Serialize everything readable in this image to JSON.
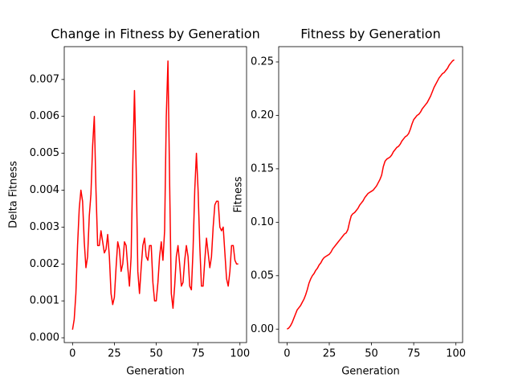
{
  "chart_data": [
    {
      "type": "line",
      "title": "Change in Fitness by Generation",
      "xlabel": "Generation",
      "ylabel": "Delta Fitness",
      "x": [
        0,
        1,
        2,
        3,
        4,
        5,
        6,
        7,
        8,
        9,
        10,
        11,
        12,
        13,
        14,
        15,
        16,
        17,
        18,
        19,
        20,
        21,
        22,
        23,
        24,
        25,
        26,
        27,
        28,
        29,
        30,
        31,
        32,
        33,
        34,
        35,
        36,
        37,
        38,
        39,
        40,
        41,
        42,
        43,
        44,
        45,
        46,
        47,
        48,
        49,
        50,
        51,
        52,
        53,
        54,
        55,
        56,
        57,
        58,
        59,
        60,
        61,
        62,
        63,
        64,
        65,
        66,
        67,
        68,
        69,
        70,
        71,
        72,
        73,
        74,
        75,
        76,
        77,
        78,
        79,
        80,
        81,
        82,
        83,
        84,
        85,
        86,
        87,
        88,
        89,
        90,
        91,
        92,
        93,
        94,
        95,
        96,
        97,
        98,
        99
      ],
      "series": [
        {
          "color": "#ff0000",
          "values": [
            0.00022,
            0.0005,
            0.0012,
            0.0025,
            0.0035,
            0.004,
            0.0037,
            0.0026,
            0.0019,
            0.0022,
            0.0033,
            0.0039,
            0.0052,
            0.006,
            0.004,
            0.0025,
            0.0025,
            0.0029,
            0.0026,
            0.0023,
            0.0024,
            0.0028,
            0.0022,
            0.0012,
            0.0009,
            0.0011,
            0.0019,
            0.0026,
            0.0024,
            0.0018,
            0.002,
            0.0026,
            0.0025,
            0.0019,
            0.0014,
            0.0022,
            0.0047,
            0.0067,
            0.0046,
            0.0018,
            0.0012,
            0.0019,
            0.0025,
            0.0027,
            0.0022,
            0.0021,
            0.0025,
            0.0025,
            0.0015,
            0.001,
            0.001,
            0.0015,
            0.0022,
            0.0026,
            0.0021,
            0.0029,
            0.006,
            0.0075,
            0.0042,
            0.0012,
            0.0008,
            0.0014,
            0.0022,
            0.0025,
            0.002,
            0.0014,
            0.0015,
            0.0021,
            0.0025,
            0.0022,
            0.0014,
            0.0013,
            0.0024,
            0.004,
            0.005,
            0.004,
            0.0025,
            0.0014,
            0.0014,
            0.0021,
            0.0027,
            0.0023,
            0.0019,
            0.0022,
            0.003,
            0.0036,
            0.0037,
            0.0037,
            0.003,
            0.0029,
            0.003,
            0.0023,
            0.0016,
            0.0014,
            0.0018,
            0.0025,
            0.0025,
            0.0021,
            0.002,
            0.002
          ]
        }
      ],
      "xlim": [
        -4.95,
        103.95
      ],
      "xticks": [
        0,
        25,
        50,
        75,
        100
      ],
      "ylim": [
        -0.00013,
        0.00789
      ],
      "yticks": [
        {
          "value": 0,
          "label": "0.000"
        },
        0.001,
        0.002,
        0.003,
        0.004,
        0.005,
        0.006,
        0.007
      ]
    },
    {
      "type": "line",
      "title": "Fitness by Generation",
      "xlabel": "Generation",
      "ylabel": "Fitness",
      "x": [
        0,
        1,
        2,
        3,
        4,
        5,
        6,
        7,
        8,
        9,
        10,
        11,
        12,
        13,
        14,
        15,
        16,
        17,
        18,
        19,
        20,
        21,
        22,
        23,
        24,
        25,
        26,
        27,
        28,
        29,
        30,
        31,
        32,
        33,
        34,
        35,
        36,
        37,
        38,
        39,
        40,
        41,
        42,
        43,
        44,
        45,
        46,
        47,
        48,
        49,
        50,
        51,
        52,
        53,
        54,
        55,
        56,
        57,
        58,
        59,
        60,
        61,
        62,
        63,
        64,
        65,
        66,
        67,
        68,
        69,
        70,
        71,
        72,
        73,
        74,
        75,
        76,
        77,
        78,
        79,
        80,
        81,
        82,
        83,
        84,
        85,
        86,
        87,
        88,
        89,
        90,
        91,
        92,
        93,
        94,
        95,
        96,
        97,
        98,
        99
      ],
      "series": [
        {
          "color": "#ff0000",
          "values": [
            0,
            0.001,
            0.003,
            0.006,
            0.01,
            0.014,
            0.018,
            0.02,
            0.022,
            0.025,
            0.028,
            0.032,
            0.037,
            0.043,
            0.047,
            0.05,
            0.052,
            0.055,
            0.057,
            0.06,
            0.062,
            0.065,
            0.067,
            0.068,
            0.069,
            0.07,
            0.072,
            0.075,
            0.077,
            0.079,
            0.081,
            0.083,
            0.085,
            0.087,
            0.089,
            0.09,
            0.093,
            0.1,
            0.106,
            0.108,
            0.109,
            0.111,
            0.113,
            0.116,
            0.118,
            0.12,
            0.123,
            0.125,
            0.127,
            0.128,
            0.129,
            0.13,
            0.132,
            0.134,
            0.137,
            0.14,
            0.144,
            0.152,
            0.157,
            0.159,
            0.16,
            0.161,
            0.163,
            0.166,
            0.168,
            0.17,
            0.171,
            0.173,
            0.176,
            0.178,
            0.18,
            0.181,
            0.183,
            0.187,
            0.192,
            0.196,
            0.198,
            0.2,
            0.201,
            0.203,
            0.206,
            0.208,
            0.21,
            0.212,
            0.215,
            0.218,
            0.222,
            0.226,
            0.229,
            0.232,
            0.235,
            0.237,
            0.239,
            0.24,
            0.242,
            0.244,
            0.247,
            0.249,
            0.251,
            0.252
          ]
        }
      ],
      "xlim": [
        -4.95,
        103.95
      ],
      "xticks": [
        0,
        25,
        50,
        75,
        100
      ],
      "ylim": [
        -0.0126,
        0.2643
      ],
      "yticks": [
        {
          "value": 0,
          "label": "0.00"
        },
        0.05,
        {
          "value": 0.1,
          "label": "0.10"
        },
        0.15,
        {
          "value": 0.2,
          "label": "0.20"
        },
        0.25
      ]
    }
  ]
}
